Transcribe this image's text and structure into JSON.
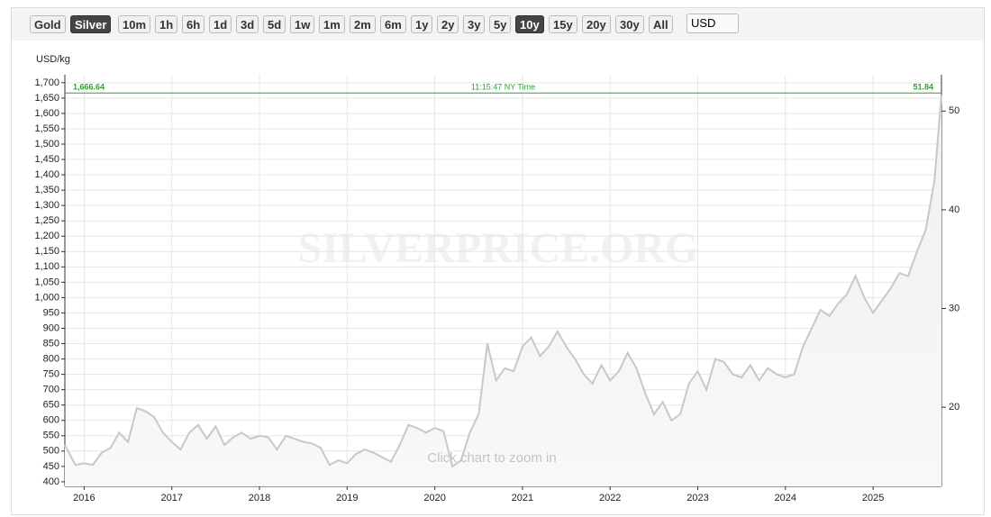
{
  "toolbar": {
    "buttons": [
      {
        "label": "Gold",
        "active": false
      },
      {
        "label": "Silver",
        "active": true
      },
      {
        "label": "10m",
        "active": false
      },
      {
        "label": "1h",
        "active": false
      },
      {
        "label": "6h",
        "active": false
      },
      {
        "label": "1d",
        "active": false
      },
      {
        "label": "3d",
        "active": false
      },
      {
        "label": "5d",
        "active": false
      },
      {
        "label": "1w",
        "active": false
      },
      {
        "label": "1m",
        "active": false
      },
      {
        "label": "2m",
        "active": false
      },
      {
        "label": "6m",
        "active": false
      },
      {
        "label": "1y",
        "active": false
      },
      {
        "label": "2y",
        "active": false
      },
      {
        "label": "3y",
        "active": false
      },
      {
        "label": "5y",
        "active": false
      },
      {
        "label": "10y",
        "active": true
      },
      {
        "label": "15y",
        "active": false
      },
      {
        "label": "20y",
        "active": false
      },
      {
        "label": "30y",
        "active": false
      },
      {
        "label": "All",
        "active": false
      }
    ],
    "currency": "USD"
  },
  "chart_data": {
    "type": "line",
    "y_label": "USD/kg",
    "watermark": "SILVERPRICE.ORG",
    "hint": "Click chart to zoom in",
    "color": "#c8c8c8",
    "grid": true,
    "x": [
      2015.78,
      2015.9,
      2016.0,
      2016.1,
      2016.2,
      2016.3,
      2016.4,
      2016.5,
      2016.6,
      2016.7,
      2016.8,
      2016.9,
      2017.0,
      2017.1,
      2017.2,
      2017.3,
      2017.4,
      2017.5,
      2017.6,
      2017.7,
      2017.8,
      2017.9,
      2018.0,
      2018.1,
      2018.2,
      2018.3,
      2018.4,
      2018.5,
      2018.6,
      2018.7,
      2018.8,
      2018.9,
      2019.0,
      2019.1,
      2019.2,
      2019.3,
      2019.4,
      2019.5,
      2019.6,
      2019.7,
      2019.8,
      2019.9,
      2020.0,
      2020.1,
      2020.2,
      2020.3,
      2020.4,
      2020.5,
      2020.6,
      2020.7,
      2020.8,
      2020.9,
      2021.0,
      2021.1,
      2021.2,
      2021.3,
      2021.4,
      2021.5,
      2021.6,
      2021.7,
      2021.8,
      2021.9,
      2022.0,
      2022.1,
      2022.2,
      2022.3,
      2022.4,
      2022.5,
      2022.6,
      2022.7,
      2022.8,
      2022.9,
      2023.0,
      2023.1,
      2023.2,
      2023.3,
      2023.4,
      2023.5,
      2023.6,
      2023.7,
      2023.8,
      2023.9,
      2024.0,
      2024.1,
      2024.2,
      2024.3,
      2024.4,
      2024.5,
      2024.6,
      2024.7,
      2024.8,
      2024.9,
      2025.0,
      2025.1,
      2025.2,
      2025.3,
      2025.4,
      2025.5,
      2025.6,
      2025.7,
      2025.78
    ],
    "values": [
      520,
      455,
      460,
      455,
      495,
      510,
      560,
      530,
      640,
      630,
      610,
      560,
      530,
      505,
      560,
      585,
      540,
      580,
      520,
      545,
      560,
      540,
      550,
      545,
      505,
      550,
      540,
      530,
      525,
      510,
      455,
      470,
      460,
      490,
      505,
      495,
      480,
      465,
      520,
      585,
      575,
      560,
      575,
      565,
      450,
      470,
      560,
      620,
      850,
      730,
      770,
      760,
      840,
      870,
      810,
      840,
      890,
      840,
      800,
      750,
      720,
      780,
      730,
      760,
      820,
      770,
      690,
      620,
      660,
      600,
      620,
      720,
      760,
      700,
      800,
      790,
      750,
      740,
      780,
      730,
      770,
      750,
      740,
      750,
      840,
      900,
      960,
      940,
      980,
      1010,
      1070,
      1000,
      950,
      990,
      1030,
      1080,
      1070,
      1150,
      1220,
      1380,
      1660
    ],
    "xlim": [
      2015.78,
      2025.78
    ],
    "xticks": [
      2016,
      2017,
      2018,
      2019,
      2020,
      2021,
      2022,
      2023,
      2024,
      2025
    ],
    "ylim": [
      385,
      1726
    ],
    "yticks": [
      400,
      450,
      500,
      550,
      600,
      650,
      700,
      750,
      800,
      850,
      900,
      950,
      {
        "value": 1000,
        "label": "1,000"
      },
      {
        "value": 1050,
        "label": "1,050"
      },
      {
        "value": 1100,
        "label": "1,100"
      },
      {
        "value": 1150,
        "label": "1,150"
      },
      {
        "value": 1200,
        "label": "1,200"
      },
      {
        "value": 1250,
        "label": "1,250"
      },
      {
        "value": 1300,
        "label": "1,300"
      },
      {
        "value": 1350,
        "label": "1,350"
      },
      {
        "value": 1400,
        "label": "1,400"
      },
      {
        "value": 1450,
        "label": "1,450"
      },
      {
        "value": 1500,
        "label": "1,500"
      },
      {
        "value": 1550,
        "label": "1,550"
      },
      {
        "value": 1600,
        "label": "1,600"
      },
      {
        "value": 1650,
        "label": "1,650"
      },
      {
        "value": 1700,
        "label": "1,700"
      }
    ],
    "y2lim": [
      11.98,
      53.68
    ],
    "y2ticks": [
      20,
      30,
      40,
      50
    ],
    "price_line": {
      "value": 1666.64,
      "label": "1,666.64"
    },
    "price_line_y2": 51.84,
    "price_time": "11:15:47 NY Time",
    "price_color": "#2ca52c"
  }
}
